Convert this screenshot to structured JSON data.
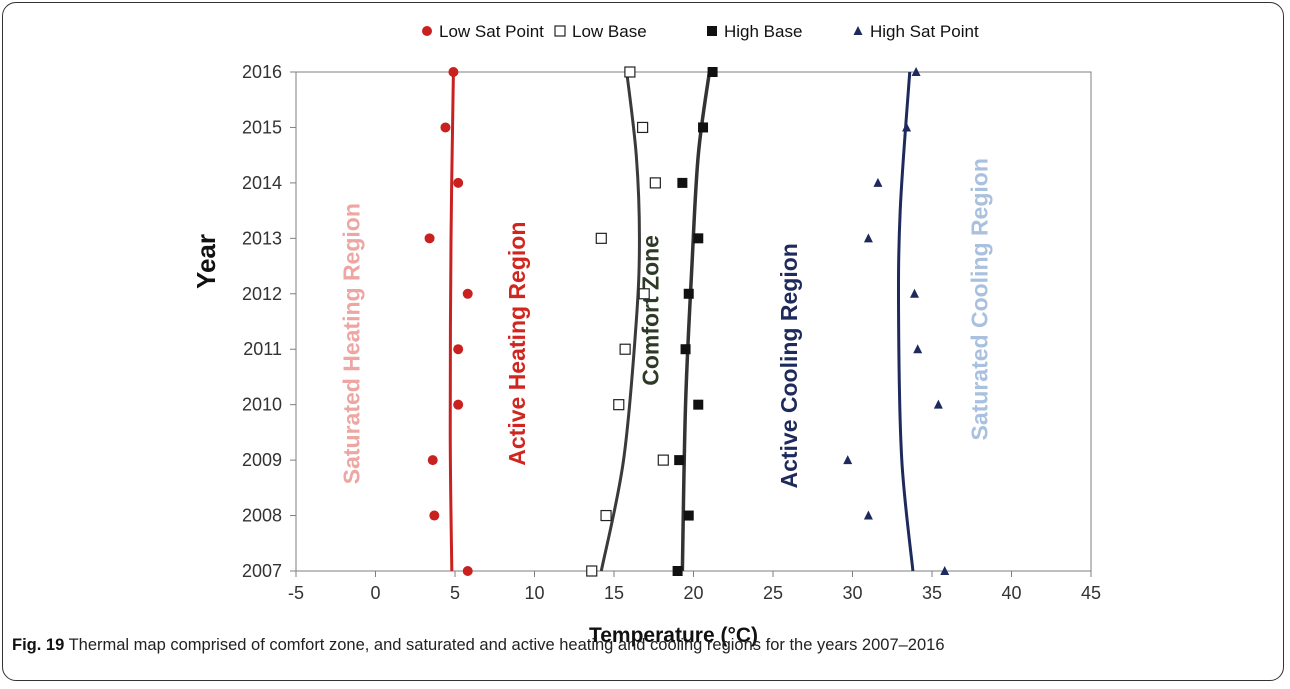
{
  "chart_data": {
    "type": "scatter",
    "xlabel": "Temperature (°C)",
    "ylabel": "Year",
    "xlim": [
      -5,
      45
    ],
    "ylim": [
      2007,
      2016
    ],
    "x_ticks": [
      -5,
      0,
      5,
      10,
      15,
      20,
      25,
      30,
      35,
      40,
      45
    ],
    "y_ticks": [
      2007,
      2008,
      2009,
      2010,
      2011,
      2012,
      2013,
      2014,
      2015,
      2016
    ],
    "legend_position": "top",
    "grid": false,
    "series": [
      {
        "name": "Low Sat Point",
        "marker": "circle",
        "color": "#c8211f",
        "points": [
          [
            5.8,
            2007
          ],
          [
            3.7,
            2008
          ],
          [
            3.6,
            2009
          ],
          [
            5.2,
            2010
          ],
          [
            5.2,
            2011
          ],
          [
            5.8,
            2012
          ],
          [
            3.4,
            2013
          ],
          [
            5.2,
            2014
          ],
          [
            4.4,
            2015
          ],
          [
            4.9,
            2016
          ]
        ]
      },
      {
        "name": "Low Base",
        "marker": "square-open",
        "color": "#222222",
        "points": [
          [
            13.6,
            2007
          ],
          [
            14.5,
            2008
          ],
          [
            18.1,
            2009
          ],
          [
            15.3,
            2010
          ],
          [
            15.7,
            2011
          ],
          [
            16.9,
            2012
          ],
          [
            14.2,
            2013
          ],
          [
            17.6,
            2014
          ],
          [
            16.8,
            2015
          ],
          [
            16.0,
            2016
          ]
        ]
      },
      {
        "name": "High Base",
        "marker": "square-filled",
        "color": "#111111",
        "points": [
          [
            19.0,
            2007
          ],
          [
            19.7,
            2008
          ],
          [
            19.1,
            2009
          ],
          [
            20.3,
            2010
          ],
          [
            19.5,
            2011
          ],
          [
            19.7,
            2012
          ],
          [
            20.3,
            2013
          ],
          [
            19.3,
            2014
          ],
          [
            20.6,
            2015
          ],
          [
            21.2,
            2016
          ]
        ]
      },
      {
        "name": "High Sat Point",
        "marker": "triangle",
        "color": "#1f2a5c",
        "points": [
          [
            35.8,
            2007
          ],
          [
            31.0,
            2008
          ],
          [
            29.7,
            2009
          ],
          [
            35.4,
            2010
          ],
          [
            34.1,
            2011
          ],
          [
            33.9,
            2012
          ],
          [
            31.0,
            2013
          ],
          [
            31.6,
            2014
          ],
          [
            33.4,
            2015
          ],
          [
            34.0,
            2016
          ]
        ]
      }
    ],
    "trendlines": [
      {
        "series": "Low Sat Point",
        "color": "#c8211f",
        "width": 3,
        "points": [
          [
            4.8,
            2007
          ],
          [
            4.7,
            2009.5
          ],
          [
            4.75,
            2013
          ],
          [
            4.9,
            2016
          ]
        ]
      },
      {
        "series": "Low Base",
        "color": "#3a3a3a",
        "width": 3,
        "points": [
          [
            14.2,
            2007
          ],
          [
            15.6,
            2009
          ],
          [
            16.4,
            2011.5
          ],
          [
            16.6,
            2013
          ],
          [
            16.4,
            2014.5
          ],
          [
            15.8,
            2016
          ]
        ]
      },
      {
        "series": "High Base",
        "color": "#333333",
        "width": 3.5,
        "points": [
          [
            19.3,
            2007
          ],
          [
            19.5,
            2010
          ],
          [
            19.9,
            2012.5
          ],
          [
            20.3,
            2014.5
          ],
          [
            21.0,
            2016
          ]
        ]
      },
      {
        "series": "High Sat Point",
        "color": "#1f2a5c",
        "width": 3,
        "points": [
          [
            33.8,
            2007
          ],
          [
            33.1,
            2009
          ],
          [
            32.9,
            2011.5
          ],
          [
            33.0,
            2013.5
          ],
          [
            33.6,
            2016
          ]
        ]
      }
    ],
    "region_labels": [
      {
        "text": "Saturated Heating Region",
        "color": "#eea6a3",
        "x": -1.0,
        "y": 2011.1
      },
      {
        "text": "Active Heating Region",
        "color": "#d1261f",
        "x": 9.4,
        "y": 2011.1
      },
      {
        "text": "Comfort Zone",
        "color": "#2d3a26",
        "x": 17.8,
        "y": 2011.7
      },
      {
        "text": "Active Cooling Region",
        "color": "#1f2a5c",
        "x": 26.5,
        "y": 2010.7
      },
      {
        "text": "Saturated Cooling Region",
        "color": "#a9c0df",
        "x": 38.5,
        "y": 2011.9
      }
    ]
  },
  "caption": {
    "label": "Fig. 19",
    "text": "Thermal map comprised of comfort zone, and saturated and active heating and cooling regions for the years 2007–2016"
  }
}
